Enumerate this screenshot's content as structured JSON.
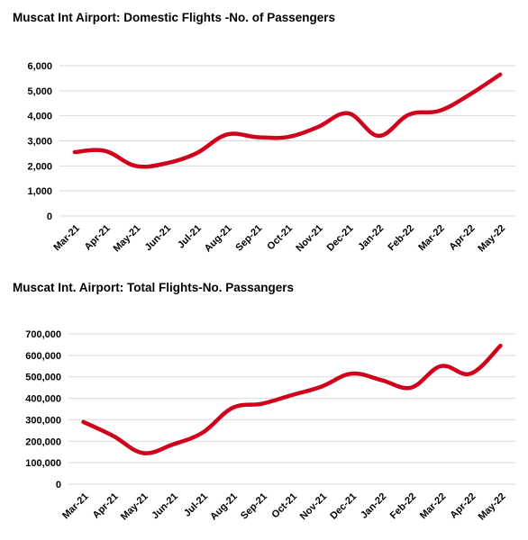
{
  "chart_data": [
    {
      "type": "line",
      "title": "Muscat Int Airport: Domestic Flights -No. of Passengers",
      "categories": [
        "Mar-21",
        "Apr-21",
        "May-21",
        "Jun-21",
        "Jul-21",
        "Aug-21",
        "Sep-21",
        "Oct-21",
        "Nov-21",
        "Dec-21",
        "Jan-22",
        "Feb-22",
        "Mar-22",
        "Apr-22",
        "May-22"
      ],
      "series": [
        {
          "values": [
            2550,
            2600,
            2000,
            2100,
            2500,
            3250,
            3150,
            3150,
            3550,
            4100,
            3200,
            4050,
            4200,
            4850,
            5650
          ]
        }
      ],
      "yticks": [
        "0",
        "1,000",
        "2,000",
        "3,000",
        "4,000",
        "5,000",
        "6,000"
      ],
      "ylim": [
        0,
        6000
      ],
      "grid": true,
      "line_color": "#d0021b"
    },
    {
      "type": "line",
      "title": "Muscat Int. Airport: Total Flights-No. Passangers",
      "categories": [
        "Mar-21",
        "Apr-21",
        "May-21",
        "Jun-21",
        "Jul-21",
        "Aug-21",
        "Sep-21",
        "Oct-21",
        "Nov-21",
        "Dec-21",
        "Jan-22",
        "Feb-22",
        "Mar-22",
        "Apr-22",
        "May-22"
      ],
      "series": [
        {
          "values": [
            290000,
            225000,
            145000,
            185000,
            240000,
            355000,
            375000,
            415000,
            455000,
            515000,
            485000,
            450000,
            550000,
            515000,
            645000
          ]
        }
      ],
      "yticks": [
        "0",
        "100,000",
        "200,000",
        "300,000",
        "400,000",
        "500,000",
        "600,000",
        "700,000"
      ],
      "ylim": [
        0,
        700000
      ],
      "grid": true,
      "line_color": "#d0021b"
    }
  ]
}
